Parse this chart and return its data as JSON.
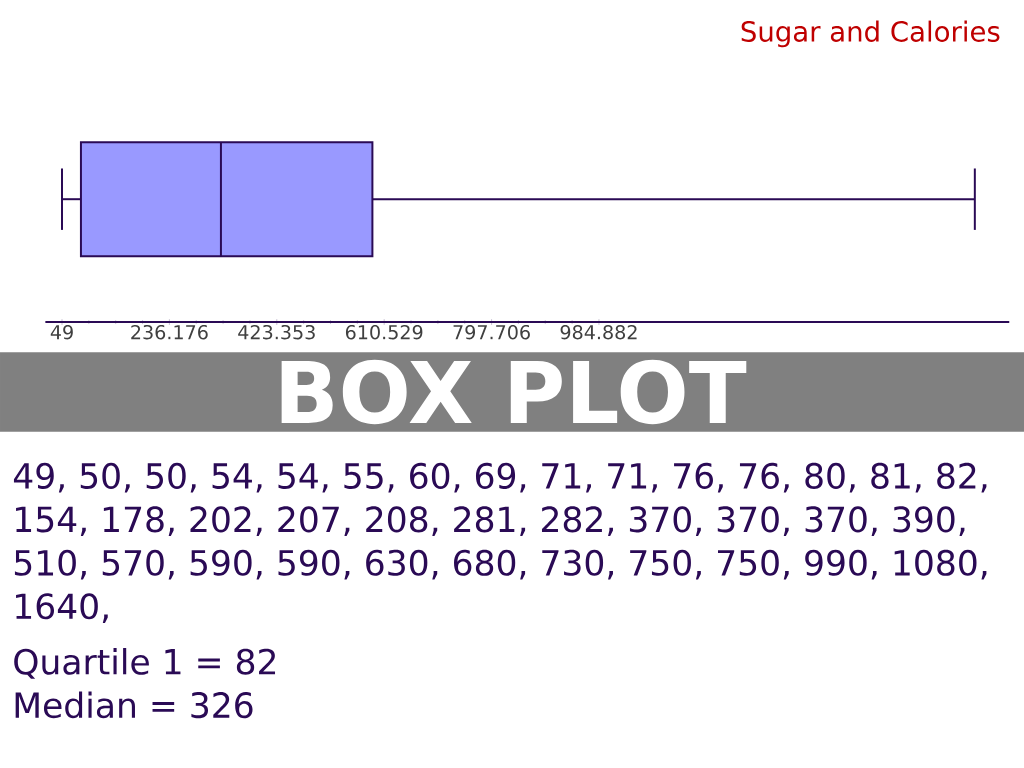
{
  "chart_data": {
    "type": "box",
    "title": "Sugar and Calories",
    "subtitle": "BOX PLOT",
    "color": "#9999ff",
    "orientation": "horizontal",
    "categories": [
      null
    ],
    "boxes": [
      {
        "low": 49,
        "q1": 82,
        "median": 326,
        "q3": 590,
        "high": 1640
      }
    ],
    "xlim": [
      20,
      1700
    ],
    "xticks": [
      49,
      236.176,
      423.353,
      610.529,
      797.706,
      984.882
    ],
    "annotations": [
      "49, 50, 50, 54, 54, 55, 60, 69, 71, 71, 76, 76, 80, 81, 82,",
      "154, 178, 202, 207, 208, 281, 282, 370, 370, 370, 390,",
      "510, 570, 590, 590, 630, 680, 730, 750, 750, 990, 1080,",
      "1640,",
      "Quartile 1 = 82",
      "Median     = 326"
    ]
  }
}
